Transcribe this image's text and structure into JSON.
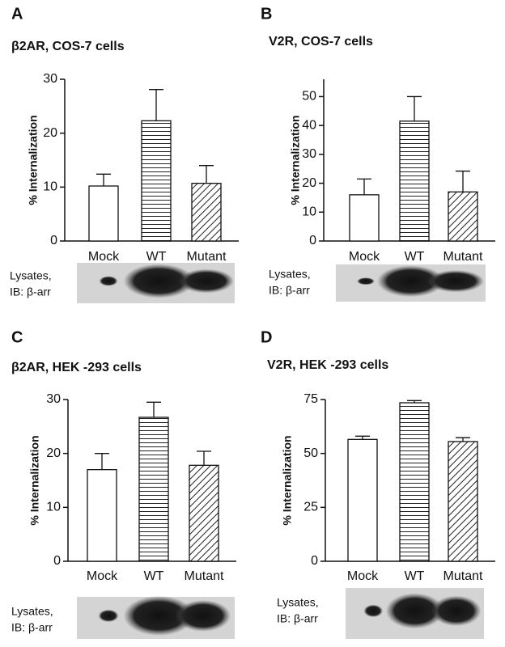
{
  "chart_data": [
    {
      "type": "bar",
      "panel": "A",
      "title": "β2AR, COS-7 cells",
      "y_label": "% Internalization",
      "categories": [
        "Mock",
        "WT",
        "Mutant"
      ],
      "values": [
        10.2,
        22.3,
        10.7
      ],
      "errors": [
        2.2,
        5.8,
        3.3
      ],
      "bar_fill": [
        "white",
        "horizontal-lines",
        "diagonal-hatch"
      ],
      "ylim": [
        0,
        30
      ],
      "yticks": [
        0,
        10,
        20,
        30
      ],
      "blot_label": [
        "Lysates,",
        "IB: β-arr"
      ]
    },
    {
      "type": "bar",
      "panel": "B",
      "title": "V2R, COS-7 cells",
      "y_label": "% Internalization",
      "categories": [
        "Mock",
        "WT",
        "Mutant"
      ],
      "values": [
        16,
        41.5,
        17
      ],
      "errors": [
        5.5,
        8.5,
        7.2
      ],
      "bar_fill": [
        "white",
        "horizontal-lines",
        "diagonal-hatch"
      ],
      "ylim": [
        0,
        56
      ],
      "yticks": [
        0,
        10,
        20,
        30,
        40,
        50
      ],
      "blot_label": [
        "Lysates,",
        "IB: β-arr"
      ]
    },
    {
      "type": "bar",
      "panel": "C",
      "title": "β2AR, HEK -293 cells",
      "y_label": "% Internalization",
      "categories": [
        "Mock",
        "WT",
        "Mutant"
      ],
      "values": [
        17,
        26.7,
        17.8
      ],
      "errors": [
        3,
        2.8,
        2.6
      ],
      "bar_fill": [
        "white",
        "horizontal-lines",
        "diagonal-hatch"
      ],
      "ylim": [
        0,
        30
      ],
      "yticks": [
        0,
        10,
        20,
        30
      ],
      "blot_label": [
        "Lysates,",
        "IB: β-arr"
      ]
    },
    {
      "type": "bar",
      "panel": "D",
      "title": "V2R, HEK -293 cells",
      "y_label": "% Internalization",
      "categories": [
        "Mock",
        "WT",
        "Mutant"
      ],
      "values": [
        56.5,
        73.5,
        55.5
      ],
      "errors": [
        1.5,
        1,
        1.8
      ],
      "bar_fill": [
        "white",
        "horizontal-lines",
        "diagonal-hatch"
      ],
      "ylim": [
        0,
        75
      ],
      "yticks": [
        0,
        25,
        50,
        75
      ],
      "blot_label": [
        "Lysates,",
        "IB: β-arr"
      ]
    }
  ]
}
